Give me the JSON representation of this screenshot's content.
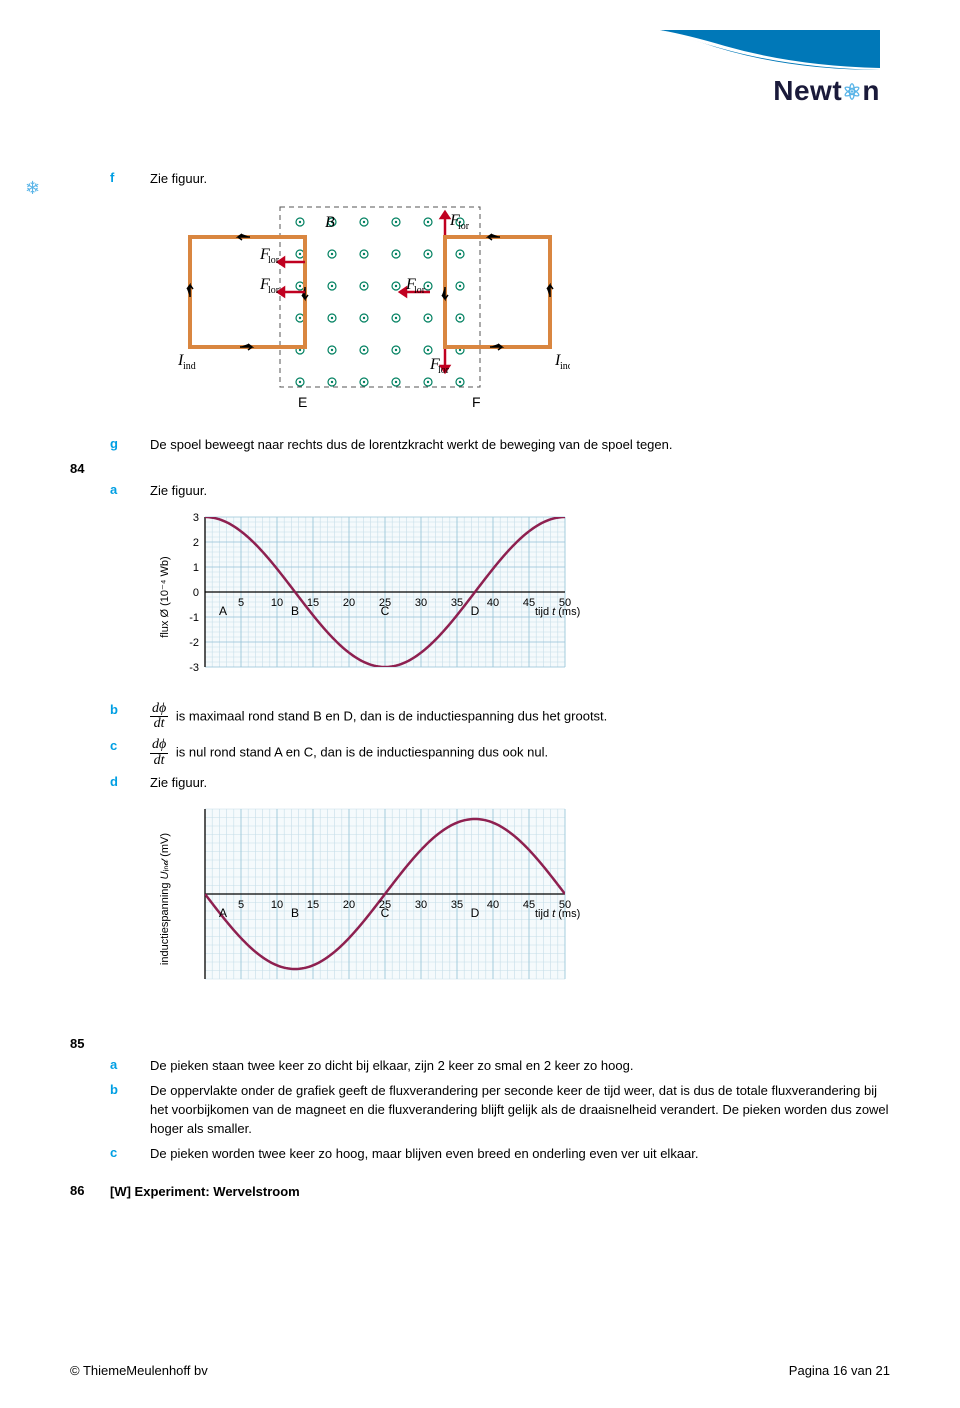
{
  "logo": {
    "text": "Newt",
    "suffix": "n"
  },
  "items": [
    {
      "letter": "f",
      "text": "Zie figuur."
    },
    {
      "letter": "g",
      "text": "De spoel beweegt naar rechts dus de lorentzkracht werkt de beweging van de spoel tegen."
    }
  ],
  "q84": {
    "num": "84",
    "a": {
      "letter": "a",
      "text": "Zie figuur."
    },
    "b": {
      "letter": "b",
      "text": " is maximaal rond stand B en D, dan is de inductiespanning dus het grootst."
    },
    "c": {
      "letter": "c",
      "text": " is nul rond stand A en C, dan is de inductiespanning dus ook nul."
    },
    "d": {
      "letter": "d",
      "text": "Zie figuur."
    }
  },
  "q85": {
    "num": "85",
    "a": {
      "letter": "a",
      "text": "De pieken staan twee keer zo dicht bij elkaar, zijn 2 keer zo smal en 2 keer zo hoog."
    },
    "b": {
      "letter": "b",
      "text": "De oppervlakte onder de grafiek geeft de fluxverandering per seconde keer de tijd weer, dat is dus de totale fluxverandering bij het voorbijkomen van de magneet en die fluxverandering blijft gelijk als de draaisnelheid verandert. De pieken worden dus zowel hoger als smaller."
    },
    "c": {
      "letter": "c",
      "text": "De pieken worden twee keer zo hoog, maar blijven even breed en onderling even ver uit elkaar."
    }
  },
  "q86": {
    "num": "86",
    "text": "[W] Experiment: Wervelstroom"
  },
  "footer": {
    "left": "© ThiemeMeulenhoff bv",
    "right": "Pagina 16 van 21"
  },
  "diagram_f": {
    "labels": {
      "B": "B",
      "Flor": "F",
      "Flor_sub": "lor",
      "Iind": "I",
      "Iind_sub": "ind",
      "E": "E",
      "F": "F"
    },
    "colors": {
      "wire": "#d98640",
      "arrow": "#c00020",
      "field": "#008060",
      "dash": "#555"
    }
  },
  "chart1": {
    "type": "line",
    "ylabel": "flux Ø (10⁻⁴ Wb)",
    "xlabel": "tijd t (ms)",
    "xrange": [
      0,
      50
    ],
    "yrange": [
      -3,
      3
    ],
    "xticks": [
      5,
      10,
      15,
      20,
      25,
      30,
      35,
      40,
      45,
      50
    ],
    "yticks": [
      -3,
      -2,
      -1,
      0,
      1,
      2,
      3
    ],
    "xlabels_special": {
      "A": 2.5,
      "B": 12.5,
      "C": 25,
      "D": 37.5
    },
    "curve_color": "#8e2050",
    "grid_color": "#b8d8e8",
    "bg": "#f0f6fa",
    "curve": "cosine"
  },
  "chart2": {
    "type": "line",
    "ylabel": "inductiespanning Uᵢₙ𝒹 (mV)",
    "xlabel": "tijd t (ms)",
    "xrange": [
      0,
      50
    ],
    "xticks": [
      5,
      10,
      15,
      20,
      25,
      30,
      35,
      40,
      45,
      50
    ],
    "xlabels_special": {
      "A": 2.5,
      "B": 12.5,
      "C": 25,
      "D": 37.5
    },
    "curve_color": "#8e2050",
    "grid_color": "#b8d8e8",
    "bg": "#f0f6fa",
    "curve": "neg_sine"
  },
  "frac": {
    "num": "dϕ",
    "den": "dt"
  }
}
